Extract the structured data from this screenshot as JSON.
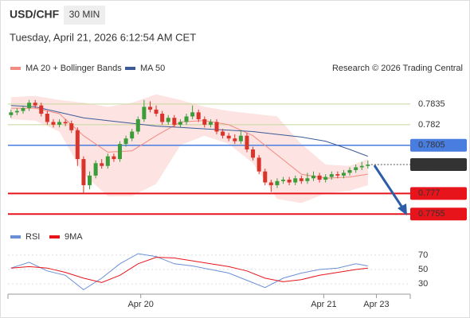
{
  "header": {
    "symbol": "USD/CHF",
    "timeframe": "30 MIN",
    "datetime": "Tuesday, April 21, 2026 6:12:54 AM CET",
    "copyright": "Research © 2026 Trading Central"
  },
  "chart_data": [
    {
      "type": "candlestick",
      "legend": [
        {
          "name": "MA 20 + Bollinger Bands",
          "color": "#f28b82"
        },
        {
          "name": "MA 50",
          "color": "#3c5a99"
        }
      ],
      "up_color": "#3a9d3a",
      "down_color": "#d9342b",
      "ylim": [
        0.7743,
        0.785
      ],
      "xlim": [
        -0.5,
        66
      ],
      "xticks": [
        {
          "value": 21.45,
          "label": "Apr 20"
        },
        {
          "value": 51.7,
          "label": "Apr 21"
        },
        {
          "value": 60.4,
          "label": "Apr 23"
        }
      ],
      "open": [
        0.7827,
        0.7829,
        0.783,
        0.7832,
        0.7836,
        0.7834,
        0.7828,
        0.7822,
        0.782,
        0.7822,
        0.7821,
        0.7816,
        0.7795,
        0.7776,
        0.7783,
        0.7792,
        0.779,
        0.7797,
        0.7795,
        0.7806,
        0.781,
        0.7815,
        0.7824,
        0.7833,
        0.7831,
        0.7828,
        0.7822,
        0.7825,
        0.782,
        0.7822,
        0.7826,
        0.7829,
        0.7824,
        0.782,
        0.7822,
        0.7815,
        0.7812,
        0.781,
        0.7808,
        0.7812,
        0.7802,
        0.7796,
        0.7786,
        0.7778,
        0.7776,
        0.7779,
        0.778,
        0.7778,
        0.7781,
        0.7779,
        0.7781,
        0.7783,
        0.778,
        0.7782,
        0.7784,
        0.7783,
        0.7785,
        0.7787,
        0.7789,
        0.779
      ],
      "high": [
        0.7831,
        0.7832,
        0.7834,
        0.7838,
        0.7838,
        0.7836,
        0.783,
        0.7824,
        0.7824,
        0.7824,
        0.7823,
        0.7818,
        0.7797,
        0.7786,
        0.7794,
        0.7795,
        0.7799,
        0.7799,
        0.7808,
        0.7812,
        0.7817,
        0.7826,
        0.7838,
        0.7837,
        0.7834,
        0.783,
        0.7827,
        0.7827,
        0.7824,
        0.7828,
        0.7834,
        0.7831,
        0.7826,
        0.7824,
        0.7824,
        0.7817,
        0.7814,
        0.7813,
        0.7816,
        0.7814,
        0.7804,
        0.7798,
        0.7788,
        0.778,
        0.7781,
        0.7782,
        0.7782,
        0.7783,
        0.7783,
        0.7785,
        0.7786,
        0.7785,
        0.7784,
        0.7786,
        0.7786,
        0.7787,
        0.7789,
        0.7791,
        0.7793,
        0.7794
      ],
      "low": [
        0.7825,
        0.7827,
        0.7828,
        0.783,
        0.7832,
        0.7826,
        0.782,
        0.7818,
        0.7818,
        0.7819,
        0.7814,
        0.779,
        0.777,
        0.7773,
        0.7781,
        0.7788,
        0.7788,
        0.7793,
        0.7793,
        0.7804,
        0.7808,
        0.7813,
        0.7822,
        0.7829,
        0.7826,
        0.782,
        0.782,
        0.7818,
        0.7818,
        0.782,
        0.7824,
        0.7822,
        0.7818,
        0.7818,
        0.7813,
        0.781,
        0.7808,
        0.7806,
        0.7806,
        0.78,
        0.7794,
        0.7784,
        0.7776,
        0.7771,
        0.7774,
        0.7777,
        0.7776,
        0.7776,
        0.7777,
        0.7777,
        0.7779,
        0.7778,
        0.7778,
        0.778,
        0.7781,
        0.7781,
        0.7783,
        0.7785,
        0.7787,
        0.7788
      ],
      "close": [
        0.7829,
        0.783,
        0.7832,
        0.7836,
        0.7834,
        0.7828,
        0.7822,
        0.782,
        0.7822,
        0.7821,
        0.7816,
        0.7795,
        0.7776,
        0.7783,
        0.7792,
        0.779,
        0.7797,
        0.7795,
        0.7806,
        0.781,
        0.7815,
        0.7824,
        0.7833,
        0.7831,
        0.7828,
        0.7822,
        0.7825,
        0.782,
        0.7822,
        0.7826,
        0.7829,
        0.7824,
        0.782,
        0.7822,
        0.7815,
        0.7812,
        0.781,
        0.7808,
        0.7812,
        0.7802,
        0.7796,
        0.7786,
        0.7778,
        0.7776,
        0.7779,
        0.778,
        0.7778,
        0.7781,
        0.7779,
        0.7781,
        0.7783,
        0.778,
        0.7782,
        0.7784,
        0.7783,
        0.7785,
        0.7787,
        0.7789,
        0.779,
        0.7791
      ],
      "lines_x": [
        0,
        4,
        8,
        12,
        16,
        20,
        24,
        28,
        32,
        36,
        40,
        44,
        48,
        52,
        56,
        59
      ],
      "ma20": [
        0.7832,
        0.7832,
        0.7828,
        0.7812,
        0.78,
        0.7801,
        0.7812,
        0.7822,
        0.7823,
        0.782,
        0.7812,
        0.7798,
        0.7784,
        0.7781,
        0.7782,
        0.7784
      ],
      "ma50": [
        0.7834,
        0.7833,
        0.7829,
        0.7825,
        0.7823,
        0.7821,
        0.7819,
        0.7818,
        0.7817,
        0.7816,
        0.7815,
        0.7813,
        0.7811,
        0.7808,
        0.7802,
        0.7797
      ],
      "bb_upper": [
        0.784,
        0.7841,
        0.7838,
        0.7836,
        0.7833,
        0.7836,
        0.7842,
        0.7838,
        0.7833,
        0.783,
        0.7828,
        0.7826,
        0.7806,
        0.7791,
        0.779,
        0.7795
      ],
      "bb_lower": [
        0.7824,
        0.7823,
        0.7815,
        0.7784,
        0.7768,
        0.7768,
        0.7777,
        0.7805,
        0.7812,
        0.7806,
        0.7792,
        0.7766,
        0.7763,
        0.777,
        0.7772,
        0.7776
      ],
      "levels": [
        {
          "value": 0.7835,
          "color": "#c5d89a",
          "label_color": "#6f9a2e"
        },
        {
          "value": 0.782,
          "color": "#c5d89a",
          "label_color": "#6f9a2e"
        },
        {
          "value": 0.7805,
          "color": "#4a7de0",
          "label_color": "#ffffff",
          "box": "#4a7de0"
        },
        {
          "value": 0.7791,
          "color": "#555555",
          "label_color": "#ffffff",
          "box": "#333333",
          "dotted": true
        },
        {
          "value": 0.777,
          "color": "#e8141b",
          "label_color": "#ffffff",
          "box": "#e8141b"
        },
        {
          "value": 0.7755,
          "color": "#e8141b",
          "label_color": "#ffffff",
          "box": "#e8141b"
        }
      ]
    },
    {
      "type": "line",
      "ylim": [
        18,
        82
      ],
      "yticks": [
        70,
        50,
        30
      ],
      "grid": true,
      "x": [
        0,
        3,
        6,
        9,
        12,
        15,
        18,
        21,
        24,
        27,
        30,
        33,
        36,
        39,
        42,
        45,
        48,
        51,
        54,
        57,
        59
      ],
      "series": [
        {
          "name": "RSI",
          "color": "#6b8fd6",
          "values": [
            52,
            60,
            48,
            42,
            22,
            38,
            58,
            72,
            68,
            58,
            55,
            50,
            45,
            35,
            25,
            38,
            45,
            50,
            52,
            58,
            55
          ]
        },
        {
          "name": "9MA",
          "color": "#e8141b",
          "values": [
            52,
            54,
            52,
            46,
            38,
            32,
            42,
            58,
            67,
            66,
            62,
            58,
            54,
            48,
            38,
            33,
            36,
            42,
            46,
            50,
            52
          ]
        }
      ]
    }
  ]
}
